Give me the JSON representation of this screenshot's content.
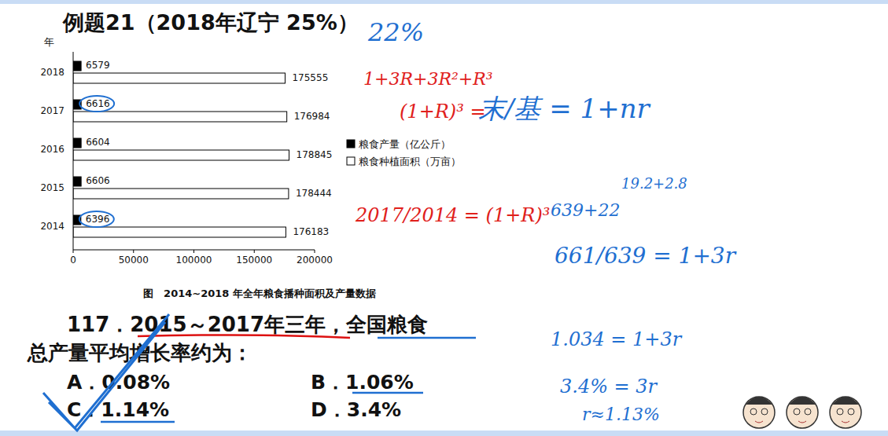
{
  "title": "例题21（2018年辽宁 25%）",
  "chart_data": {
    "type": "bar",
    "orientation": "horizontal",
    "ylabel": "年",
    "caption": "图　2014~2018 年全年粮食播种面积及产量数据",
    "categories": [
      "2018",
      "2017",
      "2016",
      "2015",
      "2014"
    ],
    "series": [
      {
        "name": "粮食产量（亿公斤）",
        "color": "#000000",
        "values": [
          6579,
          6616,
          6604,
          6606,
          6396
        ]
      },
      {
        "name": "粮食种植面积（万亩）",
        "color": "#ffffff",
        "values": [
          175555,
          176984,
          178845,
          178444,
          176183
        ]
      }
    ],
    "xlim": [
      0,
      200000
    ],
    "xticks": [
      0,
      50000,
      100000,
      150000,
      200000
    ],
    "data_labels": true,
    "legend": "right",
    "grid": false
  },
  "question": {
    "stem": [
      "117．2015～2017年三年，全国粮食",
      "总产量平均增长率约为："
    ],
    "options": [
      "A．0.08%",
      "B．1.06%",
      "C．1.14%",
      "D．3.4%"
    ]
  },
  "annotations": [
    {
      "text": "22%",
      "color": "blue"
    },
    {
      "text": "1+3R+3R²+R³",
      "color": "red"
    },
    {
      "text": "(1+R)³ =",
      "color": "red"
    },
    {
      "text": "末/基 = 1+nr",
      "color": "blue"
    },
    {
      "text": "2017/2014 = (1+R)³",
      "color": "red"
    },
    {
      "text": "19.2+2.8",
      "color": "blue"
    },
    {
      "text": "639+22",
      "color": "blue"
    },
    {
      "text": "661/639 = 1+3r",
      "color": "blue"
    },
    {
      "text": "1.034 = 1+3r",
      "color": "blue"
    },
    {
      "text": "3.4% = 3r",
      "color": "blue"
    },
    {
      "text": "r≈1.13%",
      "color": "blue"
    }
  ]
}
